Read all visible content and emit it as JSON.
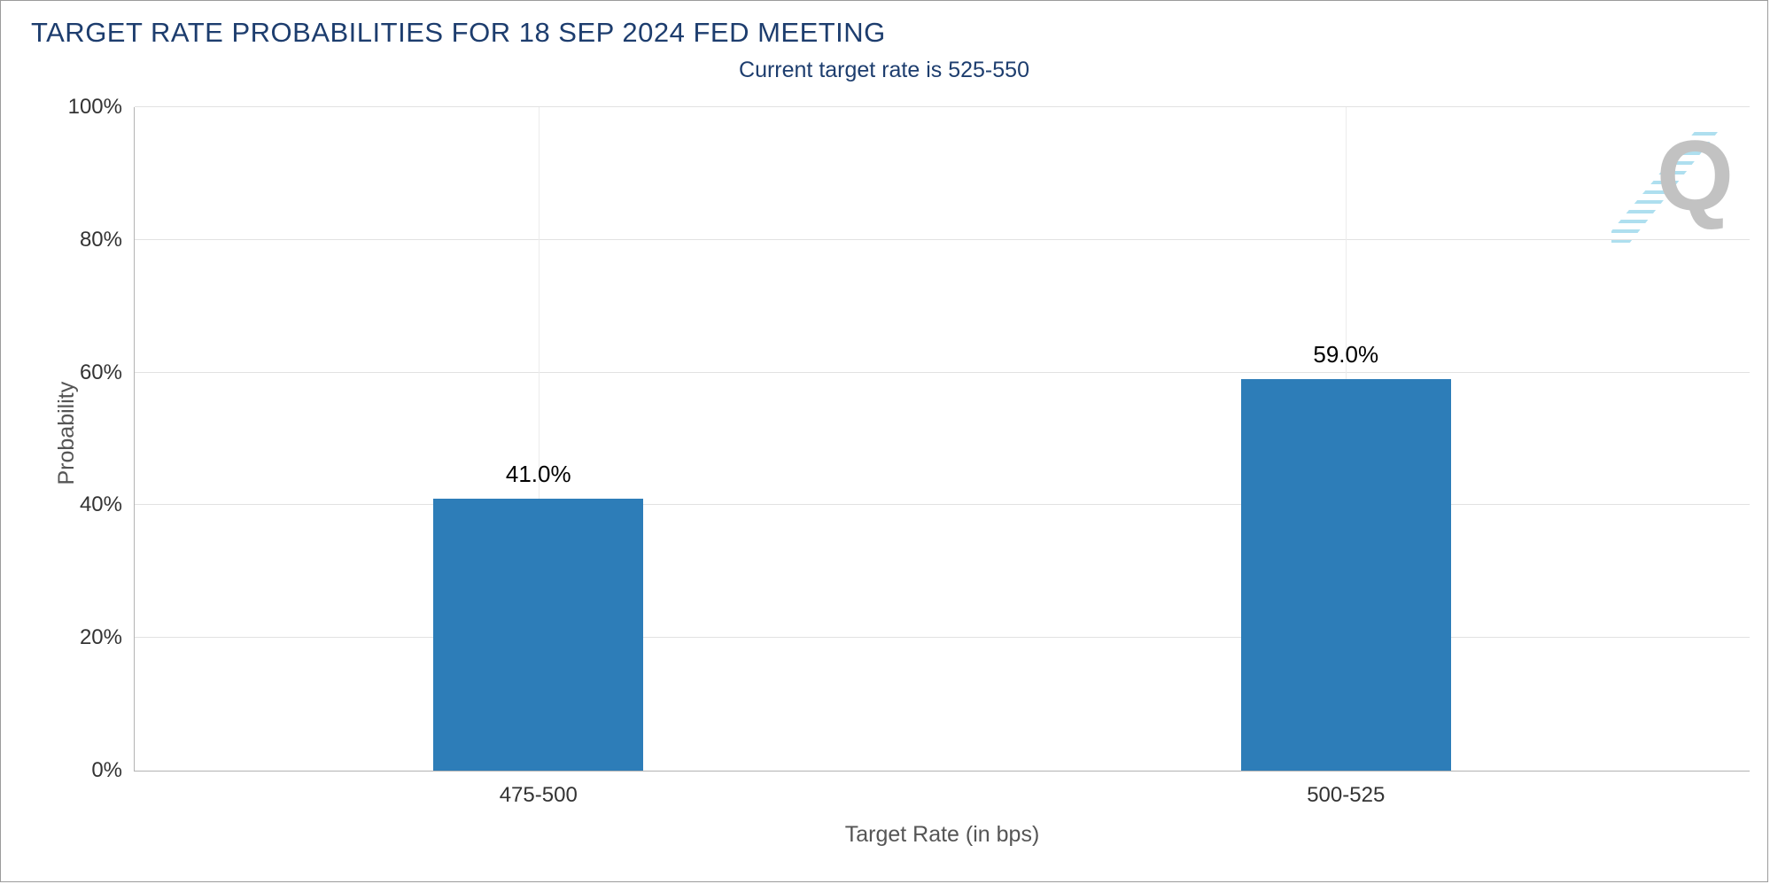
{
  "chart_data": {
    "type": "bar",
    "title": "TARGET RATE PROBABILITIES FOR 18 SEP 2024 FED MEETING",
    "subtitle": "Current target rate is 525-550",
    "categories": [
      "475-500",
      "500-525"
    ],
    "values": [
      41.0,
      59.0
    ],
    "value_labels": [
      "41.0%",
      "59.0%"
    ],
    "xlabel": "Target Rate (in bps)",
    "ylabel": "Probability",
    "ylim": [
      0,
      100
    ],
    "yticks": [
      "0%",
      "20%",
      "40%",
      "60%",
      "80%",
      "100%"
    ],
    "grid": true,
    "legend": "none",
    "bar_width_pct": 13,
    "colors": {
      "bar": "#2d7db8",
      "title_text": "#1d3d6e",
      "axis_text": "#555555",
      "tick_text": "#333333"
    },
    "watermark_letter": "Q"
  }
}
